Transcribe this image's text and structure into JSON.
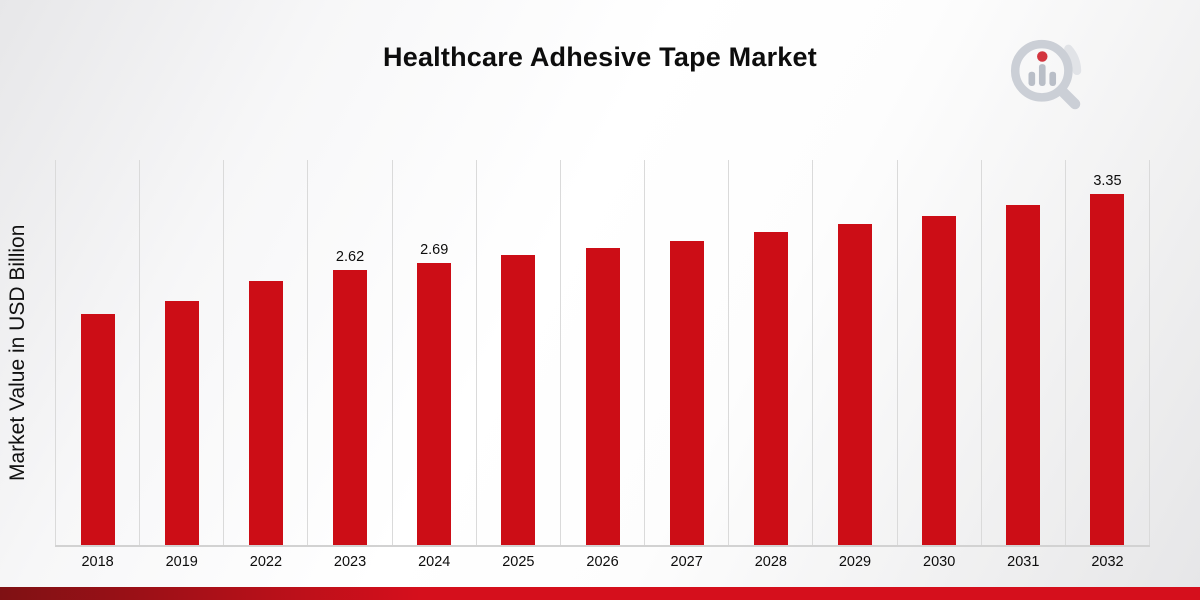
{
  "page": {
    "title": "Healthcare Adhesive Tape Market"
  },
  "colors": {
    "bar_red": "#cc0d16",
    "footer_gradient_start": "#7f1114",
    "footer_gradient_end": "#d50f1c",
    "gridline": "#dadada"
  },
  "logo": {
    "name": "market-research-magnifier-logo"
  },
  "chart_data": {
    "type": "bar",
    "title": "Healthcare Adhesive Tape Market",
    "xlabel": "",
    "ylabel": "Market Value in USD Billion",
    "categories": [
      "2018",
      "2019",
      "2022",
      "2023",
      "2024",
      "2025",
      "2026",
      "2027",
      "2028",
      "2029",
      "2030",
      "2031",
      "2032"
    ],
    "values": [
      2.2,
      2.33,
      2.52,
      2.62,
      2.69,
      2.76,
      2.83,
      2.9,
      2.98,
      3.06,
      3.14,
      3.24,
      3.35
    ],
    "data_labels": [
      null,
      null,
      null,
      "2.62",
      "2.69",
      null,
      null,
      null,
      null,
      null,
      null,
      null,
      "3.35"
    ],
    "ylim": [
      0,
      3.67
    ],
    "bar_color": "#cc0d16",
    "gridlines": "vertical",
    "legend": "none"
  }
}
